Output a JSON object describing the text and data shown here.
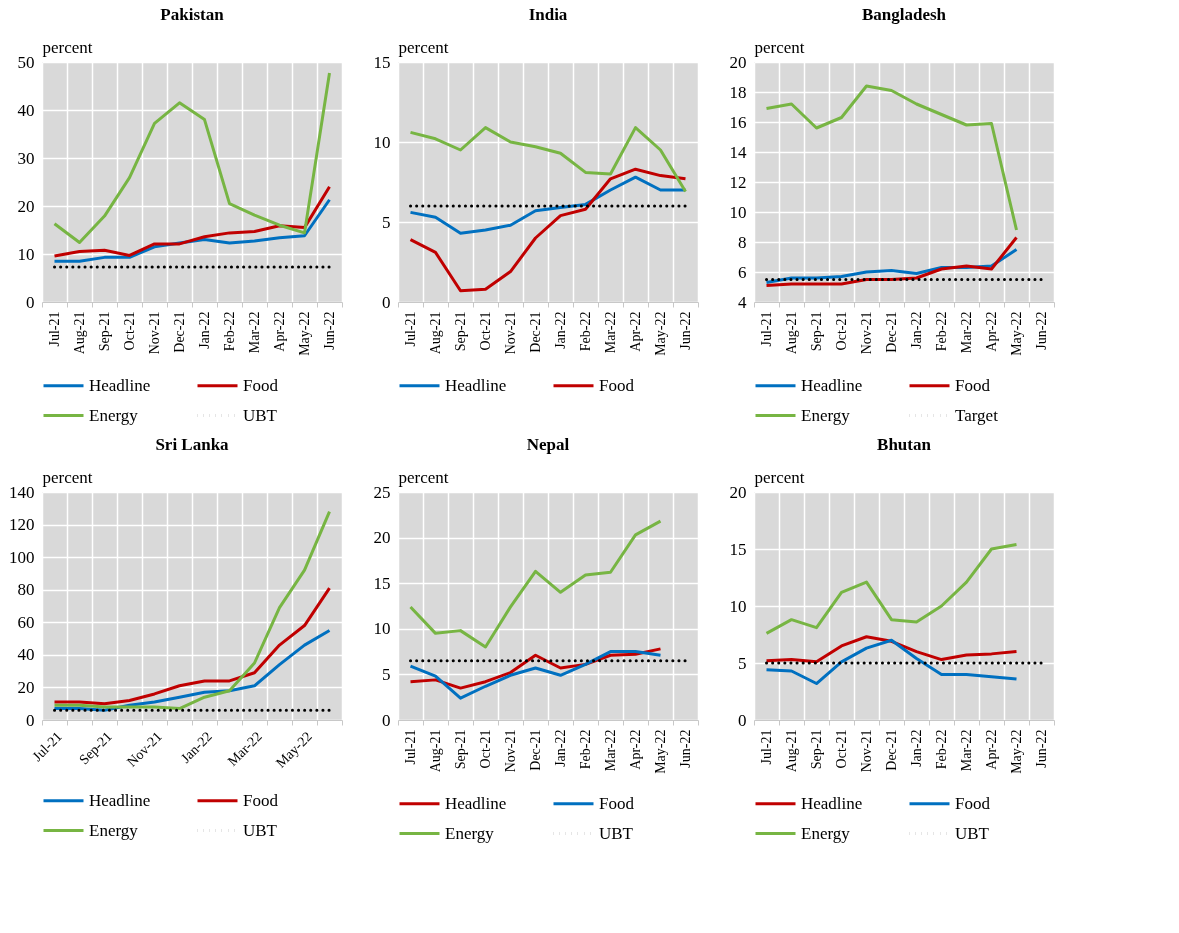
{
  "chart_data": [
    {
      "type": "line",
      "title": "Pakistan",
      "ylabel": "percent",
      "categories": [
        "Jul-21",
        "Aug-21",
        "Sep-21",
        "Oct-21",
        "Nov-21",
        "Dec-21",
        "Jan-22",
        "Feb-22",
        "Mar-22",
        "Apr-22",
        "May-22",
        "Jun-22"
      ],
      "ylim": [
        0,
        50
      ],
      "yticks": [
        0,
        10,
        20,
        30,
        40,
        50
      ],
      "grid": true,
      "legend": "bottom",
      "series": [
        {
          "name": "Headline",
          "color": "#0070c0",
          "values": [
            8.5,
            8.5,
            9.3,
            9.3,
            11.5,
            12.3,
            13.0,
            12.3,
            12.7,
            13.4,
            13.8,
            21.3
          ]
        },
        {
          "name": "Food",
          "color": "#c00000",
          "values": [
            9.6,
            10.5,
            10.8,
            9.7,
            12.1,
            12.1,
            13.6,
            14.4,
            14.7,
            15.9,
            15.5,
            24.0
          ]
        },
        {
          "name": "Energy",
          "color": "#77b543",
          "values": [
            16.3,
            12.4,
            17.9,
            25.9,
            37.2,
            41.5,
            38.0,
            20.5,
            18.1,
            16.0,
            14.4,
            47.7
          ]
        },
        {
          "name": "UBT",
          "color": "#000000",
          "line_style": "dotted",
          "values": [
            7.3,
            7.3,
            7.3,
            7.3,
            7.3,
            7.3,
            7.3,
            7.3,
            7.3,
            7.3,
            7.3,
            7.3
          ]
        }
      ]
    },
    {
      "type": "line",
      "title": "India",
      "ylabel": "percent",
      "categories": [
        "Jul-21",
        "Aug-21",
        "Sep-21",
        "Oct-21",
        "Nov-21",
        "Dec-21",
        "Jan-22",
        "Feb-22",
        "Mar-22",
        "Apr-22",
        "May-22",
        "Jun-22"
      ],
      "ylim": [
        0,
        15
      ],
      "yticks": [
        0,
        5,
        10,
        15
      ],
      "grid": true,
      "legend": "bottom",
      "series": [
        {
          "name": "Headline",
          "color": "#0070c0",
          "values": [
            5.6,
            5.3,
            4.3,
            4.5,
            4.8,
            5.7,
            5.9,
            6.1,
            7.0,
            7.8,
            7.0,
            7.0
          ]
        },
        {
          "name": "Food",
          "color": "#c00000",
          "values": [
            3.9,
            3.1,
            0.7,
            0.8,
            1.9,
            4.0,
            5.4,
            5.8,
            7.7,
            8.3,
            7.9,
            7.7
          ]
        },
        {
          "color": "#77b543",
          "values": [
            10.6,
            10.2,
            9.5,
            10.9,
            10.0,
            9.7,
            9.3,
            8.1,
            8.0,
            10.9,
            9.5,
            6.9
          ]
        },
        {
          "color": "#000000",
          "line_style": "dotted",
          "values": [
            6.0,
            6.0,
            6.0,
            6.0,
            6.0,
            6.0,
            6.0,
            6.0,
            6.0,
            6.0,
            6.0,
            6.0
          ]
        }
      ]
    },
    {
      "type": "line",
      "title": "Bangladesh",
      "ylabel": "percent",
      "categories": [
        "Jul-21",
        "Aug-21",
        "Sep-21",
        "Oct-21",
        "Nov-21",
        "Dec-21",
        "Jan-22",
        "Feb-22",
        "Mar-22",
        "Apr-22",
        "May-22",
        "Jun-22"
      ],
      "ylim": [
        4,
        20
      ],
      "yticks": [
        4,
        6,
        8,
        10,
        12,
        14,
        16,
        18,
        20
      ],
      "grid": true,
      "legend": "bottom",
      "series": [
        {
          "name": "Headline",
          "color": "#0070c0",
          "values": [
            5.3,
            5.6,
            5.6,
            5.7,
            6.0,
            6.1,
            5.9,
            6.3,
            6.3,
            6.4,
            7.5,
            null
          ]
        },
        {
          "name": "Food",
          "color": "#c00000",
          "values": [
            5.1,
            5.2,
            5.2,
            5.2,
            5.5,
            5.5,
            5.6,
            6.2,
            6.4,
            6.2,
            8.3,
            null
          ]
        },
        {
          "name": "Energy",
          "color": "#77b543",
          "values": [
            16.9,
            17.2,
            15.6,
            16.3,
            18.4,
            18.1,
            17.2,
            16.5,
            15.8,
            15.9,
            8.8,
            null
          ]
        },
        {
          "name": "Target",
          "color": "#000000",
          "line_style": "dotted",
          "values": [
            5.5,
            5.5,
            5.5,
            5.5,
            5.5,
            5.5,
            5.5,
            5.5,
            5.5,
            5.5,
            5.5,
            5.5
          ]
        }
      ]
    },
    {
      "type": "line",
      "title": "Sri Lanka",
      "ylabel": "percent",
      "categories": [
        "Jul-21",
        null,
        "Sep-21",
        null,
        "Nov-21",
        null,
        "Jan-22",
        null,
        "Mar-22",
        null,
        "May-22",
        null
      ],
      "ylim": [
        0,
        140
      ],
      "yticks": [
        0,
        20,
        40,
        60,
        80,
        100,
        120,
        140
      ],
      "grid": true,
      "legend": "bottom",
      "series": [
        {
          "name": "Headline",
          "color": "#0070c0",
          "values": [
            7,
            7,
            6,
            9,
            11,
            14,
            17,
            18,
            21,
            34,
            46,
            55
          ]
        },
        {
          "name": "Food",
          "color": "#c00000",
          "values": [
            11,
            11,
            10,
            12,
            16,
            21,
            24,
            24,
            29,
            46,
            58,
            81
          ]
        },
        {
          "name": "Energy",
          "color": "#77b543",
          "values": [
            9,
            9,
            8,
            8,
            8,
            7,
            14,
            18,
            35,
            69,
            92,
            128
          ]
        },
        {
          "name": "UBT",
          "color": "#000000",
          "line_style": "dotted",
          "values": [
            6,
            6,
            6,
            6,
            6,
            6,
            6,
            6,
            6,
            6,
            6,
            6
          ]
        }
      ]
    },
    {
      "type": "line",
      "title": "Nepal",
      "ylabel": "percent",
      "categories": [
        "Jul-21",
        "Aug-21",
        "Sep-21",
        "Oct-21",
        "Nov-21",
        "Dec-21",
        "Jan-22",
        "Feb-22",
        "Mar-22",
        "Apr-22",
        "May-22",
        "Jun-22"
      ],
      "ylim": [
        0,
        25
      ],
      "yticks": [
        0,
        5,
        10,
        15,
        20,
        25
      ],
      "grid": true,
      "legend": "bottom",
      "series": [
        {
          "name": "Headline",
          "color": "#c00000",
          "values": [
            4.2,
            4.4,
            3.5,
            4.2,
            5.2,
            7.1,
            5.7,
            6.1,
            7.1,
            7.2,
            7.8,
            null
          ]
        },
        {
          "name": "Food",
          "color": "#0070c0",
          "values": [
            5.9,
            4.8,
            2.4,
            3.7,
            4.9,
            5.7,
            4.9,
            6.1,
            7.5,
            7.5,
            7.1,
            null
          ]
        },
        {
          "name": "Energy",
          "color": "#77b543",
          "values": [
            12.4,
            9.5,
            9.8,
            8.0,
            12.4,
            16.3,
            14.0,
            15.9,
            16.2,
            20.3,
            21.8,
            null
          ]
        },
        {
          "name": "UBT",
          "color": "#000000",
          "line_style": "dotted",
          "values": [
            6.5,
            6.5,
            6.5,
            6.5,
            6.5,
            6.5,
            6.5,
            6.5,
            6.5,
            6.5,
            6.5,
            6.5
          ]
        }
      ]
    },
    {
      "type": "line",
      "title": "Bhutan",
      "ylabel": "percent",
      "categories": [
        "Jul-21",
        "Aug-21",
        "Sep-21",
        "Oct-21",
        "Nov-21",
        "Dec-21",
        "Jan-22",
        "Feb-22",
        "Mar-22",
        "Apr-22",
        "May-22",
        "Jun-22"
      ],
      "ylim": [
        0,
        20
      ],
      "yticks": [
        0,
        5,
        10,
        15,
        20
      ],
      "grid": true,
      "legend": "bottom",
      "series": [
        {
          "name": "Headline",
          "color": "#c00000",
          "values": [
            5.2,
            5.3,
            5.1,
            6.5,
            7.3,
            6.9,
            6.0,
            5.3,
            5.7,
            5.8,
            6.0,
            null
          ]
        },
        {
          "name": "Food",
          "color": "#0070c0",
          "values": [
            4.4,
            4.3,
            3.2,
            5.1,
            6.3,
            7.0,
            5.4,
            4.0,
            4.0,
            3.8,
            3.6,
            null
          ]
        },
        {
          "name": "Energy",
          "color": "#77b543",
          "values": [
            7.6,
            8.8,
            8.1,
            11.2,
            12.1,
            8.8,
            8.6,
            10.0,
            12.1,
            15.0,
            15.4,
            null
          ]
        },
        {
          "name": "UBT",
          "color": "#000000",
          "line_style": "dotted",
          "values": [
            5,
            5,
            5,
            5,
            5,
            5,
            5,
            5,
            5,
            5,
            5,
            5
          ]
        }
      ]
    }
  ]
}
